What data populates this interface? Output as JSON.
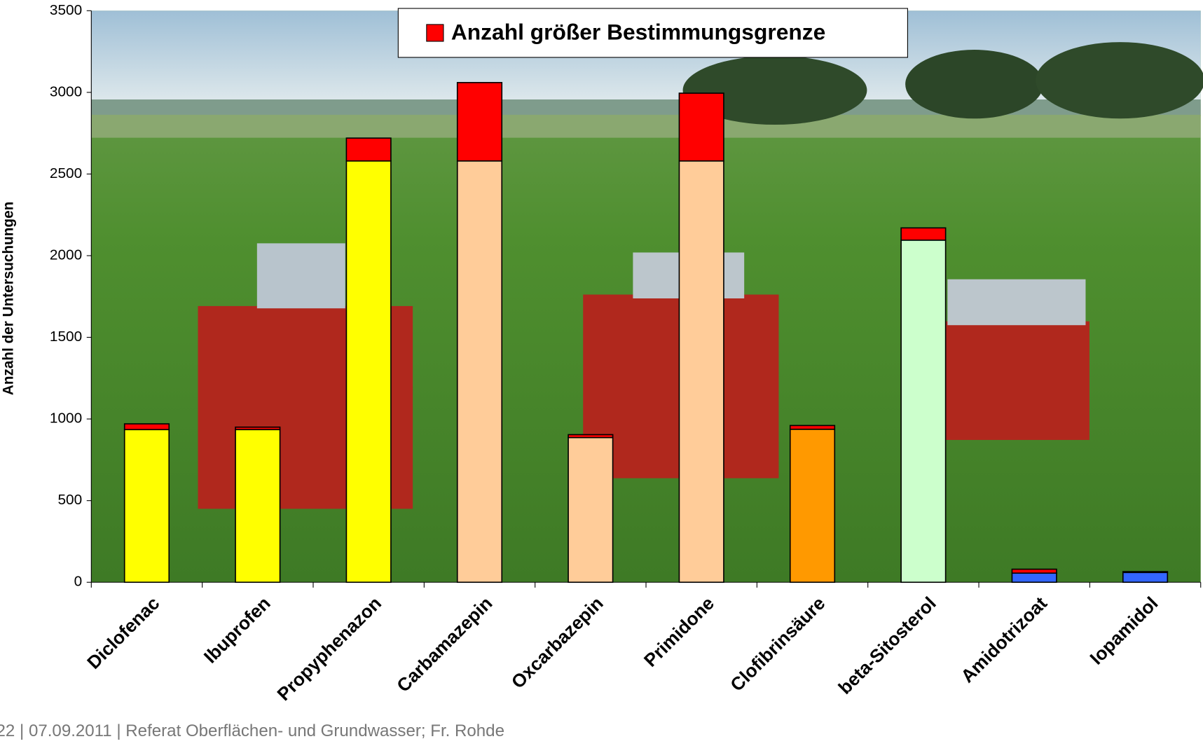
{
  "chart_data": {
    "type": "stacked-bar",
    "y_label": "Anzahl der Untersuchungen",
    "footer": "22  | 07.09.2011 |  Referat Oberflächen- und Grundwasser; Fr. Rohde",
    "categories": [
      "Diclofenac",
      "Ibuprofen",
      "Propyphenazon",
      "Carbamazepin",
      "Oxcarbazepin",
      "Primidone",
      "Clofibrinsäure",
      "beta-Sitosterol",
      "Amidotrizoat",
      "Iopamidol"
    ],
    "series": [
      {
        "colors": [
          "#ffff00",
          "#ffff00",
          "#ffff00",
          "#ffcc99",
          "#ffcc99",
          "#ffcc99",
          "#ff9900",
          "#ccffcc",
          "#3366ff",
          "#3366ff"
        ],
        "values": [
          935,
          935,
          2580,
          2580,
          886,
          2580,
          937,
          2095,
          56,
          60
        ]
      },
      {
        "name": "Anzahl größer Bestimmungsgrenze",
        "color": "#ff0000",
        "values": [
          35,
          15,
          140,
          480,
          18,
          415,
          23,
          75,
          24,
          5
        ]
      }
    ],
    "ylim": [
      0,
      3500
    ],
    "yticks": [
      0,
      500,
      1000,
      1500,
      2000,
      2500,
      3000,
      3500
    ]
  }
}
